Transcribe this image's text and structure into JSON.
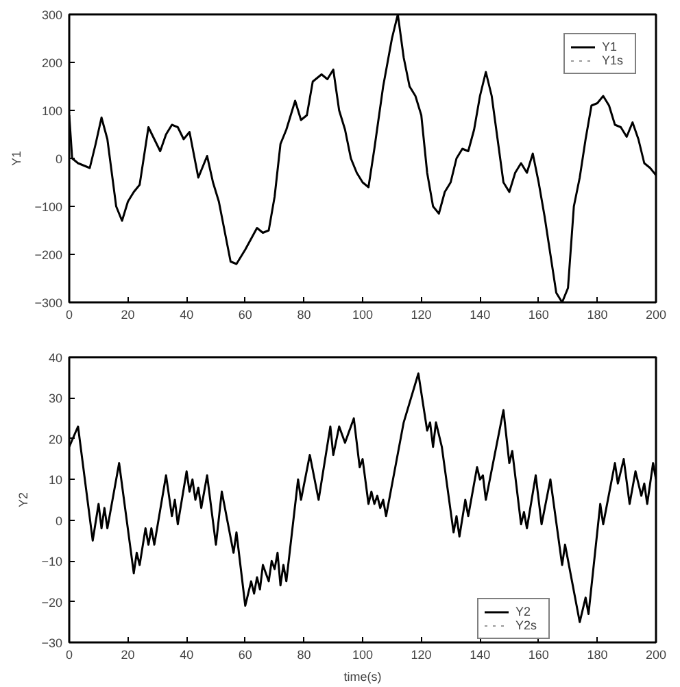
{
  "chart_data": [
    {
      "type": "line",
      "ylabel": "Y1",
      "xlim": [
        0,
        200
      ],
      "ylim": [
        -300,
        300
      ],
      "xticks": [
        0,
        20,
        40,
        60,
        80,
        100,
        120,
        140,
        160,
        180,
        200
      ],
      "yticks": [
        -300,
        -200,
        -100,
        0,
        100,
        200,
        300
      ],
      "grid": false,
      "legend": "top right",
      "marker": "none",
      "x": [
        0,
        1,
        3,
        7,
        9,
        11,
        13,
        16,
        18,
        20,
        22,
        24,
        27,
        29,
        31,
        33,
        35,
        37,
        39,
        41,
        44,
        46,
        47,
        49,
        51,
        55,
        57,
        60,
        64,
        66,
        68,
        70,
        72,
        74,
        77,
        79,
        81,
        83,
        85,
        86,
        88,
        90,
        92,
        94,
        96,
        98,
        100,
        102,
        104,
        107,
        110,
        112,
        114,
        116,
        118,
        120,
        122,
        124,
        126,
        128,
        130,
        132,
        134,
        136,
        138,
        140,
        142,
        144,
        146,
        148,
        150,
        152,
        154,
        156,
        158,
        160,
        162,
        164,
        166,
        168,
        170,
        172,
        174,
        176,
        178,
        180,
        182,
        184,
        186,
        188,
        190,
        192,
        194,
        196,
        198,
        200
      ],
      "series": [
        {
          "name": "Y1",
          "color": "#000000",
          "line_style": "solid",
          "values": [
            90,
            0,
            -10,
            -20,
            30,
            85,
            40,
            -100,
            -130,
            -90,
            -70,
            -55,
            65,
            40,
            15,
            50,
            70,
            65,
            40,
            55,
            -40,
            -10,
            5,
            -50,
            -90,
            -215,
            -220,
            -190,
            -145,
            -155,
            -150,
            -80,
            30,
            60,
            120,
            80,
            90,
            160,
            170,
            175,
            165,
            185,
            100,
            60,
            0,
            -30,
            -50,
            -60,
            20,
            150,
            250,
            300,
            210,
            150,
            130,
            90,
            -30,
            -100,
            -115,
            -70,
            -50,
            0,
            20,
            15,
            60,
            130,
            180,
            130,
            40,
            -50,
            -70,
            -30,
            -10,
            -30,
            10,
            -50,
            -120,
            -200,
            -280,
            -300,
            -270,
            -100,
            -40,
            40,
            110,
            115,
            130,
            110,
            70,
            65,
            45,
            75,
            40,
            -10,
            -20,
            -35
          ]
        },
        {
          "name": "Y1s",
          "color": "#999999",
          "line_style": "dotted",
          "values": [
            null,
            null,
            null,
            null,
            null,
            null,
            null,
            null,
            null,
            null,
            null,
            null,
            null,
            null,
            null,
            null,
            null,
            null,
            null,
            null,
            null,
            null,
            null,
            null,
            null,
            null,
            null,
            null,
            null,
            null,
            null,
            null,
            null,
            null,
            null,
            null,
            null,
            null,
            null,
            null,
            null,
            null,
            null,
            null,
            null,
            null,
            null,
            null,
            null,
            null,
            null,
            null,
            null,
            null,
            null,
            null,
            null,
            null,
            null,
            null,
            null,
            null,
            null,
            null,
            null,
            null,
            null,
            null,
            null,
            null,
            null,
            null,
            null,
            null,
            null,
            null,
            null,
            null,
            null,
            null,
            null,
            null,
            null,
            null,
            null,
            null,
            null,
            null,
            null,
            null,
            null,
            null,
            null,
            null,
            null,
            null
          ]
        }
      ]
    },
    {
      "type": "line",
      "xlabel": "time(s)",
      "ylabel": "Y2",
      "xlim": [
        0,
        200
      ],
      "ylim": [
        -30,
        40
      ],
      "xticks": [
        0,
        20,
        40,
        60,
        80,
        100,
        120,
        140,
        160,
        180,
        200
      ],
      "yticks": [
        -30,
        -20,
        -10,
        0,
        10,
        20,
        30,
        40
      ],
      "grid": false,
      "legend": "bottom right",
      "marker": "none",
      "x": [
        0,
        3,
        8,
        10,
        11,
        12,
        13,
        17,
        22,
        23,
        24,
        26,
        27,
        28,
        29,
        33,
        35,
        36,
        37,
        40,
        41,
        42,
        43,
        44,
        45,
        47,
        50,
        52,
        56,
        57,
        60,
        62,
        63,
        64,
        65,
        66,
        68,
        69,
        70,
        71,
        72,
        73,
        74,
        78,
        79,
        82,
        85,
        89,
        90,
        92,
        94,
        97,
        99,
        100,
        102,
        103,
        104,
        105,
        106,
        107,
        108,
        114,
        119,
        122,
        123,
        124,
        125,
        127,
        131,
        132,
        133,
        135,
        136,
        139,
        140,
        141,
        142,
        148,
        150,
        151,
        154,
        155,
        156,
        159,
        161,
        164,
        168,
        169,
        174,
        176,
        177,
        181,
        182,
        186,
        187,
        189,
        191,
        193,
        195,
        196,
        197,
        199,
        200
      ],
      "series": [
        {
          "name": "Y2",
          "color": "#000000",
          "line_style": "solid",
          "values": [
            18,
            23,
            -5,
            4,
            -2,
            3,
            -2,
            14,
            -13,
            -8,
            -11,
            -2,
            -6,
            -2,
            -6,
            11,
            1,
            5,
            -1,
            12,
            7,
            10,
            5,
            8,
            3,
            11,
            -6,
            7,
            -8,
            -3,
            -21,
            -15,
            -18,
            -14,
            -17,
            -11,
            -15,
            -10,
            -12,
            -8,
            -16,
            -11,
            -15,
            10,
            5,
            16,
            5,
            23,
            16,
            23,
            19,
            25,
            13,
            15,
            4,
            7,
            4,
            6,
            3,
            5,
            1,
            24,
            36,
            22,
            24,
            18,
            24,
            18,
            -3,
            1,
            -4,
            5,
            1,
            13,
            10,
            11,
            5,
            27,
            14,
            17,
            -1,
            2,
            -2,
            11,
            -1,
            10,
            -11,
            -6,
            -25,
            -19,
            -23,
            4,
            -1,
            14,
            9,
            15,
            4,
            12,
            6,
            9,
            4,
            14,
            10
          ]
        },
        {
          "name": "Y2s",
          "color": "#999999",
          "line_style": "dotted",
          "values": [
            null,
            null,
            null,
            null,
            null,
            null,
            null,
            null,
            null,
            null,
            null,
            null,
            null,
            null,
            null,
            null,
            null,
            null,
            null,
            null,
            null,
            null,
            null,
            null,
            null,
            null,
            null,
            null,
            null,
            null,
            null,
            null,
            null,
            null,
            null,
            null,
            null,
            null,
            null,
            null,
            null,
            null,
            null,
            null,
            null,
            null,
            null,
            null,
            null,
            null,
            null,
            null,
            null,
            null,
            null,
            null,
            null,
            null,
            null,
            null,
            null,
            null,
            null,
            null,
            null,
            null,
            null,
            null,
            null,
            null,
            null,
            null,
            null,
            null,
            null,
            null,
            null,
            null,
            null,
            null,
            null,
            null,
            null,
            null,
            null,
            null,
            null,
            null,
            null,
            null,
            null,
            null,
            null,
            null,
            null,
            null,
            null,
            null,
            null,
            null,
            null,
            null,
            null
          ]
        }
      ]
    }
  ]
}
